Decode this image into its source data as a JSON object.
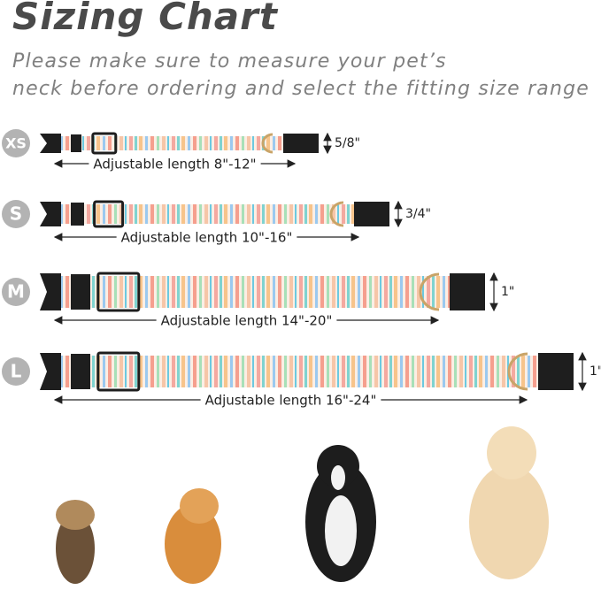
{
  "header": {
    "title": "Sizing Chart",
    "subtitle": [
      "Please make sure to measure your pet’s",
      "neck before ordering and select the fitting size range"
    ]
  },
  "sizes": [
    {
      "label": "XS",
      "length": "Adjustable length 8\"-12\"",
      "width": "5/8\""
    },
    {
      "label": "S",
      "length": "Adjustable length 10\"-16\"",
      "width": "3/4\""
    },
    {
      "label": "M",
      "length": "Adjustable length 14\"-20\"",
      "width": "1\""
    },
    {
      "label": "L",
      "length": "Adjustable length 16\"-24\"",
      "width": "1\""
    }
  ]
}
